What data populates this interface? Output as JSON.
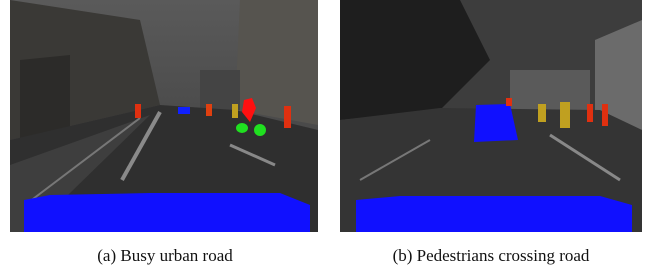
{
  "figure": {
    "panels": [
      {
        "caption": "(a) Busy urban road"
      },
      {
        "caption": "(b) Pedestrians crossing road"
      }
    ]
  }
}
